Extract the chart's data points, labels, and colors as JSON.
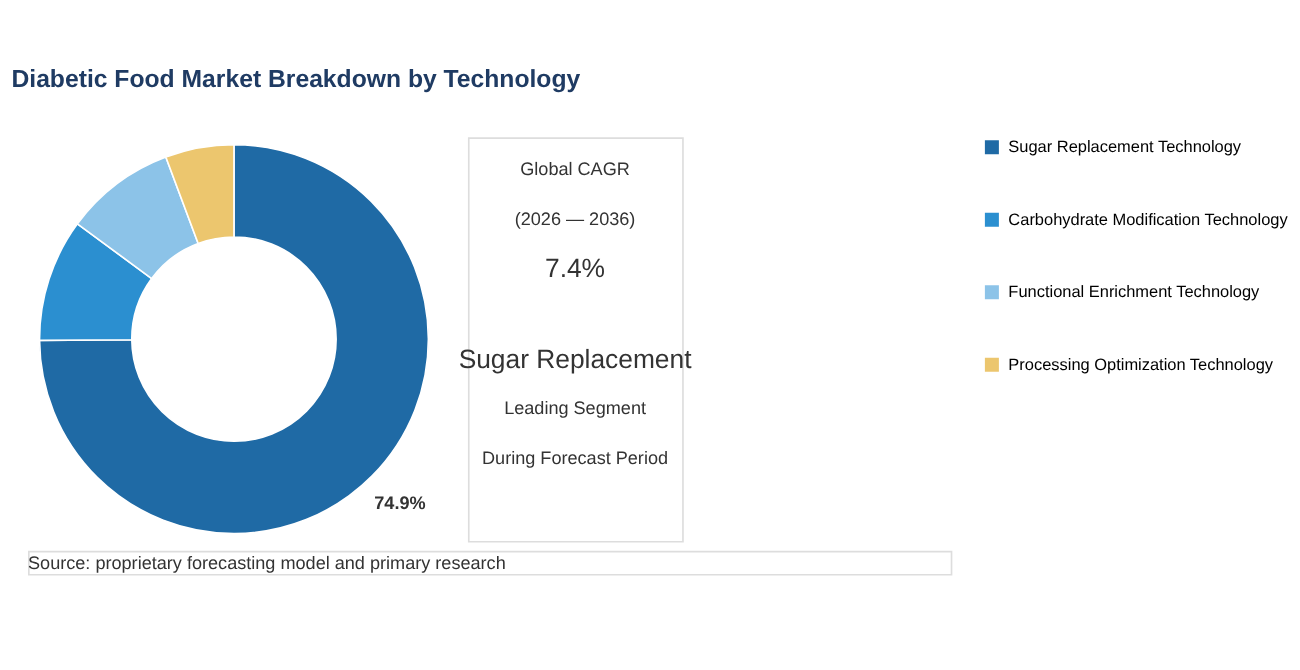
{
  "chart_data": {
    "type": "donut",
    "title": "Diabetic Food Market Breakdown by Technology",
    "categories": [
      "Sugar Replacement Technology",
      "Carbohydrate Modification Technology",
      "Functional Enrichment Technology",
      "Processing Optimization Technology"
    ],
    "values": [
      74.9,
      10.2,
      9.2,
      5.7
    ],
    "colors": [
      "#1f6aa5",
      "#2b8fd0",
      "#8cc3e8",
      "#ecc66e"
    ],
    "value_labels": [
      "74.9%",
      null,
      null,
      null
    ],
    "legend": "right",
    "annotations": [
      "Source: proprietary forecasting model and primary research",
      "Global CAGR",
      "(2026 — 2036)",
      "7.4%",
      "Sugar Replacement",
      "Leading Segment",
      "During Forecast Period"
    ]
  }
}
